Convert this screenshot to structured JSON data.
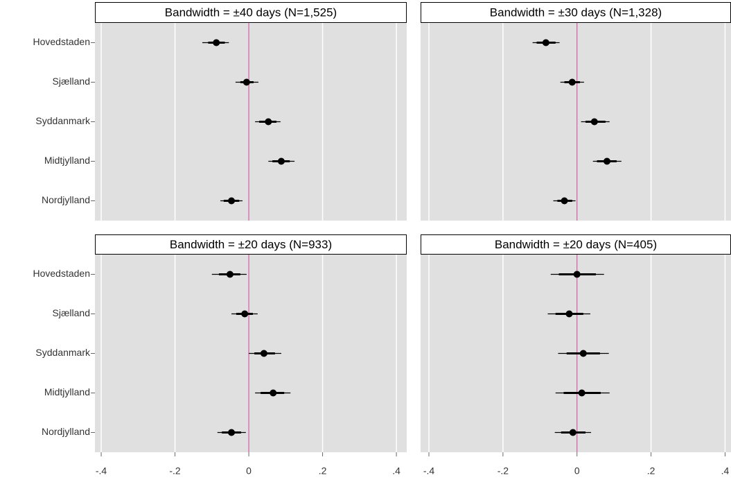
{
  "chart_data": [
    {
      "type": "coefplot",
      "title": "Bandwidth = ±40 days (N=1,525)",
      "categories": [
        "Hovedstaden",
        "Sjælland",
        "Syddanmark",
        "Midtjylland",
        "Nordjylland"
      ],
      "values": [
        -0.088,
        -0.006,
        0.053,
        0.088,
        -0.047
      ],
      "ci_low": [
        -0.126,
        -0.036,
        0.017,
        0.053,
        -0.077
      ],
      "ci_high": [
        -0.054,
        0.026,
        0.086,
        0.124,
        -0.017
      ],
      "ci_inner_low": [
        -0.11,
        -0.023,
        0.028,
        0.064,
        -0.068
      ],
      "ci_inner_high": [
        -0.065,
        0.013,
        0.075,
        0.111,
        -0.026
      ],
      "xlim": [
        -0.417,
        0.428
      ],
      "xticks": [
        -0.4,
        -0.2,
        0,
        0.2,
        0.4
      ],
      "refline": 0,
      "refline_color": "#c8559c",
      "color": "#000000",
      "grid": true
    },
    {
      "type": "coefplot",
      "title": "Bandwidth = ±30 days (N=1,328)",
      "values": [
        -0.084,
        -0.013,
        0.047,
        0.081,
        -0.034
      ],
      "ci_low": [
        -0.12,
        -0.045,
        0.011,
        0.043,
        -0.064
      ],
      "ci_high": [
        -0.047,
        0.019,
        0.088,
        0.12,
        -0.004
      ],
      "ci_inner_low": [
        -0.109,
        -0.034,
        0.023,
        0.054,
        -0.053
      ],
      "ci_inner_high": [
        -0.058,
        0.008,
        0.077,
        0.107,
        -0.013
      ],
      "xlim": [
        -0.4225,
        0.416
      ],
      "xticks": [
        -0.4,
        -0.2,
        0,
        0.2,
        0.4
      ],
      "refline": 0,
      "refline_color": "#c8559c",
      "color": "#000000",
      "grid": true
    },
    {
      "type": "coefplot",
      "title": "Bandwidth = ±20 days (N=933)",
      "categories": [
        "Hovedstaden",
        "Sjælland",
        "Syddanmark",
        "Midtjylland",
        "Nordjylland"
      ],
      "values": [
        -0.051,
        -0.011,
        0.041,
        0.066,
        -0.047
      ],
      "ci_low": [
        -0.1,
        -0.047,
        0,
        0.017,
        -0.085
      ],
      "ci_high": [
        -0.006,
        0.024,
        0.088,
        0.113,
        -0.008
      ],
      "ci_inner_low": [
        -0.081,
        -0.034,
        0.015,
        0.032,
        -0.073
      ],
      "ci_inner_high": [
        -0.023,
        0.011,
        0.071,
        0.096,
        -0.021
      ],
      "xlim": [
        -0.417,
        0.428
      ],
      "xticks": [
        {
          "value": -0.4,
          "label": "-.4"
        },
        {
          "value": -0.2,
          "label": "-.2"
        },
        0,
        {
          "value": 0.2,
          "label": ".2"
        },
        {
          "value": 0.4,
          "label": ".4"
        }
      ],
      "refline": 0,
      "refline_color": "#c8559c",
      "color": "#000000",
      "grid": true
    },
    {
      "type": "coefplot",
      "title": "Bandwidth = ±20 days (N=405)",
      "values": [
        0.0,
        -0.021,
        0.017,
        0.013,
        -0.011
      ],
      "ci_low": [
        -0.071,
        -0.079,
        -0.051,
        -0.058,
        -0.06
      ],
      "ci_high": [
        0.073,
        0.036,
        0.086,
        0.088,
        0.038
      ],
      "ci_inner_low": [
        -0.049,
        -0.058,
        -0.028,
        -0.036,
        -0.043
      ],
      "ci_inner_high": [
        0.051,
        0.017,
        0.062,
        0.064,
        0.023
      ],
      "xlim": [
        -0.4225,
        0.416
      ],
      "xticks": [
        {
          "value": -0.4,
          "label": "-.4"
        },
        {
          "value": -0.2,
          "label": "-.2"
        },
        0,
        {
          "value": 0.2,
          "label": ".2"
        },
        {
          "value": 0.4,
          "label": ".4"
        }
      ],
      "refline": 0,
      "refline_color": "#c8559c",
      "color": "#000000",
      "grid": true
    }
  ]
}
